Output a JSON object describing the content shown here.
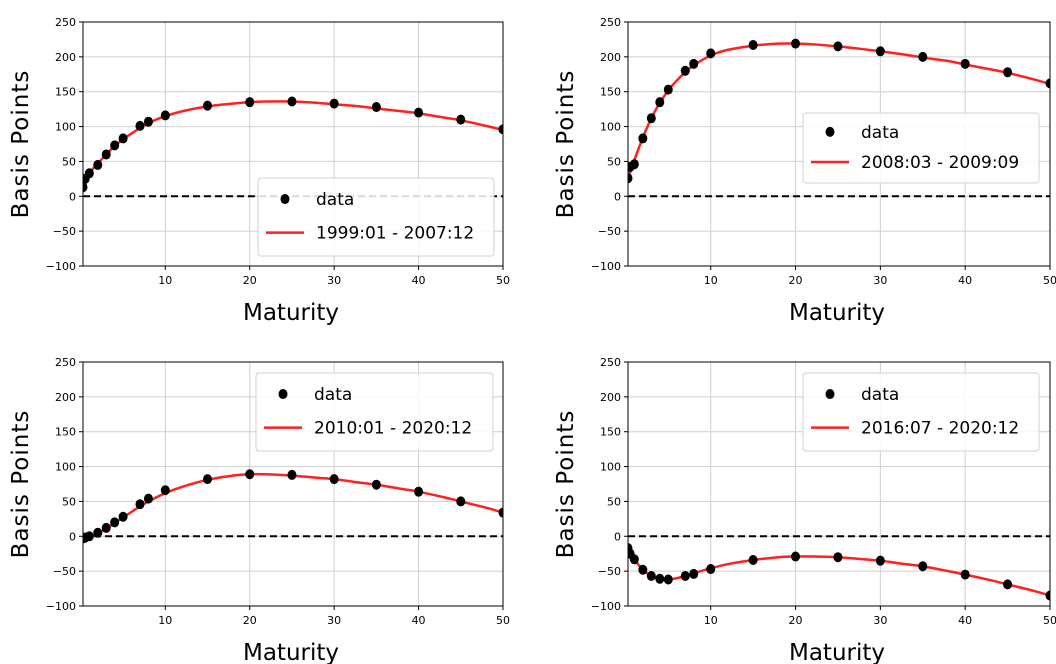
{
  "chart_data": [
    {
      "type": "line",
      "xlabel": "Maturity",
      "ylabel": "Basis Points",
      "xlim": [
        0.25,
        50
      ],
      "ylim": [
        -100,
        250
      ],
      "xticks": [
        10,
        20,
        30,
        40,
        50
      ],
      "yticks": [
        -100,
        -50,
        0,
        50,
        100,
        150,
        200,
        250
      ],
      "grid": true,
      "zero_line": true,
      "legend_placement": "lower-right",
      "series": [
        {
          "name": "data",
          "kind": "scatter",
          "color": "#000000",
          "x": [
            0.25,
            0.5,
            1,
            2,
            3,
            4,
            5,
            7,
            8,
            10,
            15,
            20,
            25,
            30,
            35,
            40,
            45,
            50
          ],
          "y": [
            13,
            25,
            33,
            45,
            60,
            73,
            83,
            101,
            107,
            116,
            130,
            135,
            136,
            133,
            128,
            120,
            110,
            96
          ]
        },
        {
          "name": "1999:01 - 2007:12",
          "kind": "line",
          "color": "#ff2020",
          "x": [
            0.25,
            1,
            2,
            3,
            4,
            5,
            6,
            7,
            8,
            10,
            12,
            15,
            18,
            20,
            22,
            25,
            28,
            30,
            33,
            35,
            38,
            40,
            43,
            45,
            48,
            50
          ],
          "y": [
            15,
            33,
            47,
            60,
            72,
            82,
            90,
            98,
            105,
            115,
            122,
            129,
            133,
            135,
            136,
            136,
            134,
            132,
            129,
            126,
            122,
            119,
            113,
            109,
            101,
            95
          ]
        }
      ]
    },
    {
      "type": "line",
      "xlabel": "Maturity",
      "ylabel": "Basis Points",
      "xlim": [
        0.25,
        50
      ],
      "ylim": [
        -100,
        250
      ],
      "xticks": [
        10,
        20,
        30,
        40,
        50
      ],
      "yticks": [
        -100,
        -50,
        0,
        50,
        100,
        150,
        200,
        250
      ],
      "grid": true,
      "zero_line": true,
      "legend_placement": "center-right",
      "series": [
        {
          "name": "data",
          "kind": "scatter",
          "color": "#000000",
          "x": [
            0.25,
            0.5,
            1,
            2,
            3,
            4,
            5,
            7,
            8,
            10,
            15,
            20,
            25,
            30,
            35,
            40,
            45,
            50
          ],
          "y": [
            26,
            42,
            46,
            83,
            112,
            135,
            153,
            180,
            190,
            205,
            217,
            219,
            215,
            208,
            200,
            190,
            178,
            162
          ]
        },
        {
          "name": "2008:03 - 2009:09",
          "kind": "line",
          "color": "#ff2020",
          "x": [
            0.25,
            1,
            2,
            3,
            4,
            5,
            6,
            7,
            8,
            10,
            12,
            15,
            18,
            20,
            22,
            25,
            28,
            30,
            33,
            35,
            38,
            40,
            43,
            45,
            48,
            50
          ],
          "y": [
            25,
            52,
            84,
            112,
            134,
            152,
            166,
            178,
            188,
            202,
            210,
            216,
            219,
            219,
            218,
            215,
            211,
            208,
            203,
            199,
            194,
            189,
            182,
            177,
            168,
            161
          ]
        }
      ]
    },
    {
      "type": "line",
      "xlabel": "Maturity",
      "ylabel": "Basis Points",
      "xlim": [
        0.25,
        50
      ],
      "ylim": [
        -100,
        250
      ],
      "xticks": [
        10,
        20,
        30,
        40,
        50
      ],
      "yticks": [
        -100,
        -50,
        0,
        50,
        100,
        150,
        200,
        250
      ],
      "grid": true,
      "zero_line": true,
      "legend_placement": "upper-right",
      "series": [
        {
          "name": "data",
          "kind": "scatter",
          "color": "#000000",
          "x": [
            0.25,
            0.5,
            1,
            2,
            3,
            4,
            5,
            7,
            8,
            10,
            15,
            20,
            25,
            30,
            35,
            40,
            45,
            50
          ],
          "y": [
            -3,
            -2,
            0,
            5,
            12,
            20,
            28,
            46,
            54,
            66,
            82,
            89,
            88,
            82,
            74,
            64,
            50,
            34
          ]
        },
        {
          "name": "2010:01 - 2020:12",
          "kind": "line",
          "color": "#ff2020",
          "x": [
            0.25,
            1,
            2,
            3,
            4,
            5,
            6,
            7,
            8,
            10,
            12,
            15,
            18,
            20,
            22,
            25,
            28,
            30,
            33,
            35,
            38,
            40,
            43,
            45,
            48,
            50
          ],
          "y": [
            -3,
            -1,
            4,
            11,
            19,
            27,
            35,
            43,
            50,
            62,
            71,
            81,
            87,
            89,
            89,
            87,
            84,
            82,
            77,
            74,
            68,
            64,
            56,
            50,
            41,
            34
          ]
        }
      ]
    },
    {
      "type": "line",
      "xlabel": "Maturity",
      "ylabel": "Basis Points",
      "xlim": [
        0.25,
        50
      ],
      "ylim": [
        -100,
        250
      ],
      "xticks": [
        10,
        20,
        30,
        40,
        50
      ],
      "yticks": [
        -100,
        -50,
        0,
        50,
        100,
        150,
        200,
        250
      ],
      "grid": true,
      "zero_line": true,
      "legend_placement": "upper-right",
      "series": [
        {
          "name": "data",
          "kind": "scatter",
          "color": "#000000",
          "x": [
            0.25,
            0.5,
            1,
            2,
            3,
            4,
            5,
            7,
            8,
            10,
            15,
            20,
            25,
            30,
            35,
            40,
            45,
            50
          ],
          "y": [
            -17,
            -25,
            -33,
            -48,
            -57,
            -61,
            -62,
            -57,
            -54,
            -47,
            -34,
            -29,
            -30,
            -35,
            -43,
            -55,
            -69,
            -85
          ]
        },
        {
          "name": "2016:07 - 2020:12",
          "kind": "line",
          "color": "#ff2020",
          "x": [
            0.25,
            1,
            2,
            3,
            4,
            5,
            6,
            7,
            8,
            10,
            12,
            15,
            18,
            20,
            22,
            25,
            28,
            30,
            33,
            35,
            38,
            40,
            43,
            45,
            48,
            50
          ],
          "y": [
            -18,
            -33,
            -48,
            -57,
            -61,
            -62,
            -60,
            -57,
            -53,
            -46,
            -40,
            -34,
            -30,
            -29,
            -29,
            -30,
            -33,
            -35,
            -40,
            -43,
            -50,
            -55,
            -63,
            -69,
            -78,
            -85
          ]
        }
      ]
    }
  ]
}
